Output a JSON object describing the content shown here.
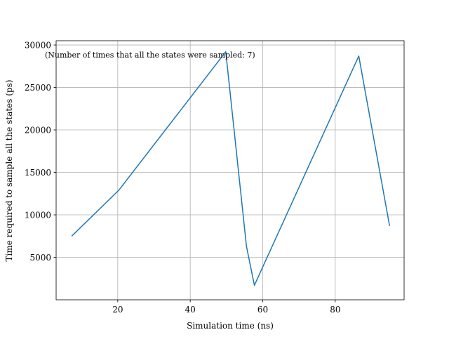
{
  "chart_data": {
    "type": "line",
    "title": "",
    "xlabel": "Simulation time (ns)",
    "ylabel": "Time required to sample all the states (ps)",
    "annotation": "(Number of times that all the states were sampled: 7)",
    "xlim": [
      3,
      99
    ],
    "ylim": [
      0,
      30500
    ],
    "xticks": [
      20,
      40,
      60,
      80
    ],
    "yticks": [
      5000,
      10000,
      15000,
      20000,
      25000,
      30000
    ],
    "grid": true,
    "color": "#1f77b4",
    "series": [
      {
        "x": [
          7.3,
          20.3,
          49.8,
          55.5,
          57.7,
          86.5,
          95.0
        ],
        "y": [
          7500,
          12900,
          29200,
          6300,
          1700,
          28700,
          8700
        ]
      }
    ]
  }
}
